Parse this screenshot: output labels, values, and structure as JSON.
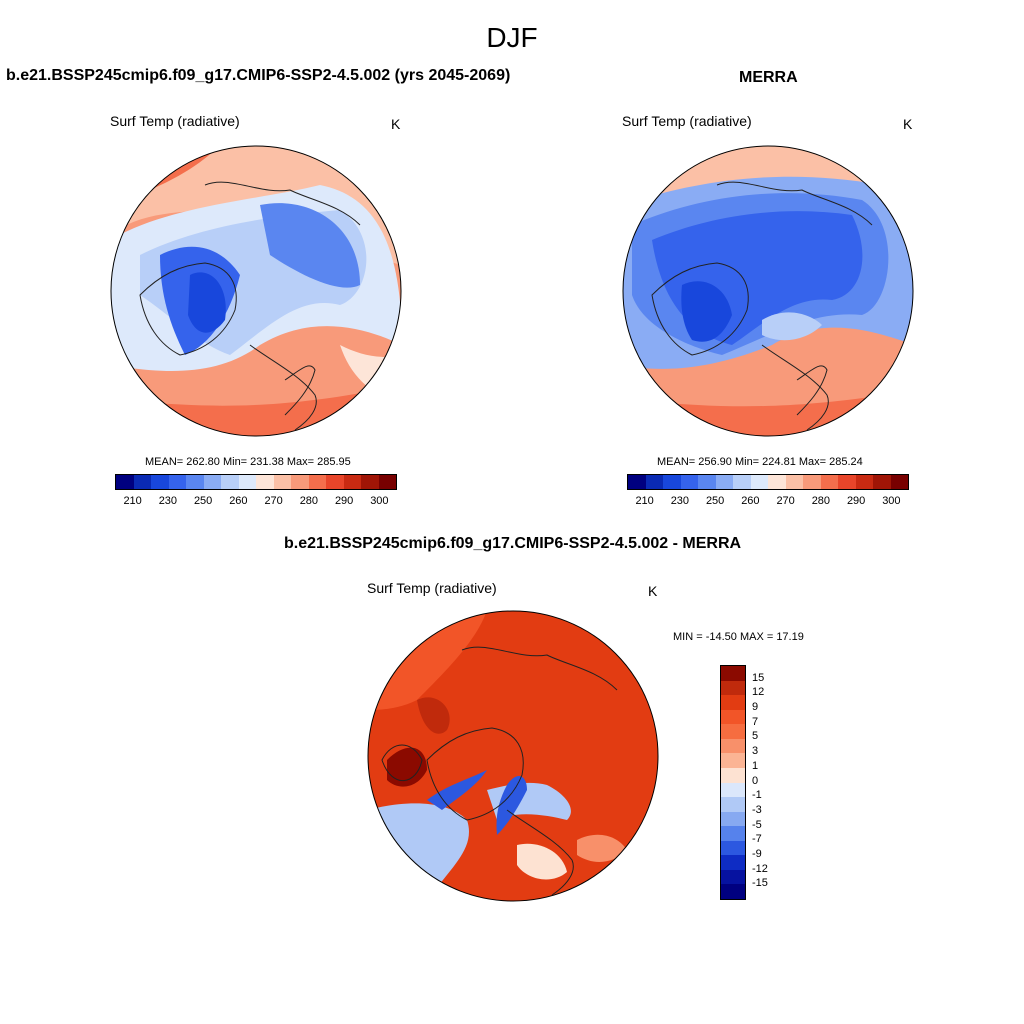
{
  "title": "DJF",
  "panels": {
    "model": {
      "title": "b.e21.BSSP245cmip6.f09_g17.CMIP6-SSP2-4.5.002 (yrs 2045-2069)",
      "variable": "Surf Temp (radiative)",
      "units": "K",
      "stats": "MEAN= 262.80  Min= 231.38  Max= 285.95"
    },
    "obs": {
      "title": "MERRA",
      "variable": "Surf Temp (radiative)",
      "units": "K",
      "stats": "MEAN= 256.90  Min= 224.81  Max= 285.24"
    },
    "diff": {
      "title": "b.e21.BSSP245cmip6.f09_g17.CMIP6-SSP2-4.5.002 - MERRA",
      "variable": "Surf Temp (radiative)",
      "units": "K",
      "stats": "MIN = -14.50 MAX =  17.19"
    }
  },
  "colorbar_abs": {
    "ticks": [
      "210",
      "230",
      "250",
      "260",
      "270",
      "280",
      "290",
      "300"
    ],
    "colors": [
      "#000080",
      "#0a2ab4",
      "#1847dc",
      "#3563ec",
      "#5a86f0",
      "#8aacf4",
      "#b8cff8",
      "#dde9fb",
      "#fde5d8",
      "#fbc0a6",
      "#f89a7a",
      "#f46e4c",
      "#e8452a",
      "#c92a12",
      "#a01506",
      "#780000"
    ]
  },
  "colorbar_diff": {
    "ticks": [
      "15",
      "12",
      "9",
      "7",
      "5",
      "3",
      "1",
      "0",
      "-1",
      "-3",
      "-5",
      "-7",
      "-9",
      "-12",
      "-15"
    ],
    "colors": [
      "#8b0a00",
      "#c02a0c",
      "#e23c12",
      "#f25528",
      "#f66d40",
      "#f8906a",
      "#fbb494",
      "#fde2d2",
      "#dbe7fb",
      "#b0c9f6",
      "#87a9f1",
      "#5682ec",
      "#2c58e0",
      "#0e2cc4",
      "#0612a0",
      "#000080"
    ]
  }
}
